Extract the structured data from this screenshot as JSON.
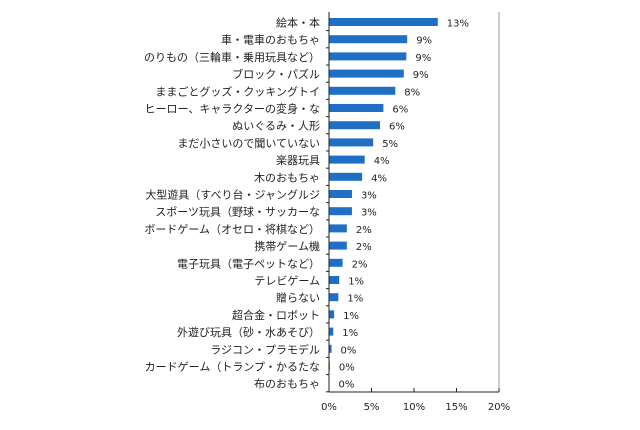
{
  "chart_data": {
    "type": "bar",
    "orientation": "horizontal",
    "categories": [
      "絵本・本",
      "車・電車のおもちゃ",
      "のりもの（三輪車・乗用玩具など）",
      "ブロック・パズル",
      "ままごとグッズ・クッキングトイ",
      "ヒーロー、キャラクターの変身・な",
      "ぬいぐるみ・人形",
      "まだ小さいので聞いていない",
      "楽器玩具",
      "木のおもちゃ",
      "大型遊具（すべり台・ジャングルジ",
      "スポーツ玩具（野球・サッカーな",
      "ボードゲーム（オセロ・将棋など）",
      "携帯ゲーム機",
      "電子玩具（電子ペットなど）",
      "テレビゲーム",
      "贈らない",
      "超合金・ロボット",
      "外遊び玩具（砂・水あそび）",
      "ラジコン・プラモデル",
      "カードゲーム（トランプ・かるたな",
      "布のおもちゃ"
    ],
    "values": [
      12.8,
      9.2,
      9.1,
      8.8,
      7.8,
      6.4,
      6.0,
      5.2,
      4.2,
      3.9,
      2.7,
      2.7,
      2.1,
      2.1,
      1.6,
      1.2,
      1.1,
      0.6,
      0.5,
      0.3,
      0.1,
      0.0
    ],
    "data_labels": [
      "13%",
      "9%",
      "9%",
      "9%",
      "8%",
      "6%",
      "6%",
      "5%",
      "4%",
      "4%",
      "3%",
      "3%",
      "2%",
      "2%",
      "2%",
      "1%",
      "1%",
      "1%",
      "1%",
      "0%",
      "0%",
      "0%"
    ],
    "xlim": [
      0,
      20
    ],
    "x_ticks": [
      "0%",
      "5%",
      "10%",
      "15%",
      "20%"
    ],
    "title": "",
    "xlabel": "",
    "ylabel": "",
    "grid": false,
    "bar_color": "#1f6fc4"
  }
}
